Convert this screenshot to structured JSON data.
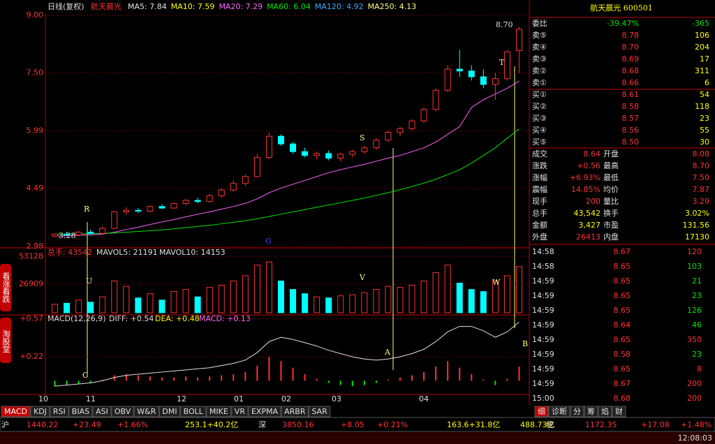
{
  "header": {
    "mode": "日线(复权)",
    "stock": "航天晨光",
    "ma": [
      {
        "text": "MA5: 7.84",
        "color": "#e0e0e0"
      },
      {
        "text": "MA10: 7.59",
        "color": "#ffff00"
      },
      {
        "text": "MA20: 7.29",
        "color": "#ff66ff"
      },
      {
        "text": "MA60: 6.04",
        "color": "#00e600"
      },
      {
        "text": "MA120: 4.92",
        "color": "#44aaff"
      },
      {
        "text": "MA250: 4.13",
        "color": "#ffff80"
      }
    ]
  },
  "price_chart": {
    "type": "candlestick",
    "ylim": [
      2.98,
      9.0
    ],
    "yticks": [
      {
        "value": 9.0,
        "label": "9.00"
      },
      {
        "value": 7.5,
        "label": "7.50"
      },
      5.99,
      4.49,
      2.98
    ],
    "ohlc": [
      [
        3.25,
        3.32,
        3.22,
        3.3
      ],
      [
        3.3,
        3.36,
        3.26,
        3.28
      ],
      [
        3.28,
        3.38,
        3.25,
        3.35
      ],
      [
        3.35,
        3.42,
        3.3,
        3.32
      ],
      [
        3.32,
        3.5,
        3.3,
        3.45
      ],
      [
        3.45,
        3.9,
        3.44,
        3.88
      ],
      [
        3.88,
        4.0,
        3.8,
        3.92
      ],
      [
        3.92,
        3.98,
        3.85,
        3.9
      ],
      [
        3.9,
        4.05,
        3.88,
        4.02
      ],
      [
        4.02,
        4.08,
        3.95,
        3.98
      ],
      [
        3.98,
        4.12,
        3.96,
        4.1
      ],
      [
        4.1,
        4.22,
        4.05,
        4.18
      ],
      [
        4.18,
        4.25,
        4.1,
        4.15
      ],
      [
        4.15,
        4.35,
        4.12,
        4.3
      ],
      [
        4.3,
        4.5,
        4.25,
        4.45
      ],
      [
        4.45,
        4.7,
        4.4,
        4.62
      ],
      [
        4.62,
        4.85,
        4.55,
        4.8
      ],
      [
        4.8,
        5.4,
        4.78,
        5.3
      ],
      [
        5.3,
        5.95,
        5.25,
        5.85
      ],
      [
        5.85,
        5.9,
        5.6,
        5.65
      ],
      [
        5.65,
        5.7,
        5.4,
        5.45
      ],
      [
        5.45,
        5.55,
        5.3,
        5.35
      ],
      [
        5.35,
        5.45,
        5.25,
        5.4
      ],
      [
        5.4,
        5.48,
        5.22,
        5.28
      ],
      [
        5.28,
        5.42,
        5.2,
        5.38
      ],
      [
        5.38,
        5.5,
        5.3,
        5.45
      ],
      [
        5.45,
        5.6,
        5.4,
        5.55
      ],
      [
        5.55,
        5.8,
        5.5,
        5.75
      ],
      [
        5.75,
        6.0,
        5.7,
        5.95
      ],
      [
        5.95,
        6.1,
        5.85,
        6.05
      ],
      [
        6.05,
        6.3,
        6.0,
        6.25
      ],
      [
        6.25,
        6.6,
        6.2,
        6.55
      ],
      [
        6.55,
        7.1,
        6.5,
        7.05
      ],
      [
        7.05,
        7.7,
        7.0,
        7.6
      ],
      [
        7.6,
        8.1,
        7.4,
        7.55
      ],
      [
        7.55,
        7.7,
        7.3,
        7.4
      ],
      [
        7.4,
        7.6,
        7.1,
        7.2
      ],
      [
        7.2,
        7.5,
        6.8,
        7.35
      ],
      [
        7.35,
        8.1,
        7.3,
        8.05
      ],
      [
        8.08,
        8.7,
        7.5,
        8.64
      ]
    ],
    "lines": [
      {
        "color": "#ff66ff",
        "values": [
          3.25,
          3.26,
          3.27,
          3.28,
          3.3,
          3.35,
          3.42,
          3.48,
          3.55,
          3.62,
          3.68,
          3.75,
          3.82,
          3.88,
          3.95,
          4.02,
          4.1,
          4.22,
          4.38,
          4.5,
          4.6,
          4.7,
          4.8,
          4.9,
          4.98,
          5.05,
          5.12,
          5.2,
          5.28,
          5.35,
          5.45,
          5.55,
          5.7,
          5.9,
          6.1,
          6.6,
          6.8,
          6.95,
          7.1,
          7.29
        ]
      },
      {
        "color": "#00e600",
        "values": [
          3.3,
          3.3,
          3.31,
          3.31,
          3.32,
          3.33,
          3.35,
          3.37,
          3.39,
          3.41,
          3.44,
          3.47,
          3.5,
          3.53,
          3.57,
          3.61,
          3.65,
          3.7,
          3.76,
          3.82,
          3.88,
          3.94,
          4.0,
          4.06,
          4.12,
          4.18,
          4.24,
          4.31,
          4.38,
          4.46,
          4.54,
          4.63,
          4.73,
          4.85,
          4.98,
          5.15,
          5.35,
          5.55,
          5.8,
          6.04
        ]
      }
    ],
    "annotations": [
      "R",
      "G",
      "S",
      "T",
      "8.70",
      "3.28"
    ]
  },
  "volume_chart": {
    "type": "bar",
    "title": "总手: 43542",
    "mavol5": "MAVOL5: 21191",
    "mavol10": "MAVOL10: 14153",
    "ylim": [
      0,
      60000
    ],
    "yticks": [
      53128,
      26909
    ],
    "values": [
      8000,
      9000,
      12000,
      10000,
      15000,
      30000,
      25000,
      14000,
      18000,
      12000,
      20000,
      22000,
      15000,
      24000,
      26000,
      30000,
      35000,
      45000,
      48000,
      30000,
      22000,
      18000,
      15000,
      14000,
      16000,
      17000,
      19000,
      22000,
      25000,
      24000,
      26000,
      30000,
      38000,
      45000,
      28000,
      22000,
      20000,
      30000,
      35000,
      43542
    ],
    "annotations": [
      "U",
      "V",
      "W"
    ]
  },
  "macd_chart": {
    "type": "bar",
    "title": "MACD(12,26,9)",
    "diff": "DIFF: +0.54",
    "dea": "DEA: +0.48",
    "macd": "MACD: +0.13",
    "ylim": [
      -0.126,
      0.6
    ],
    "yticks": [
      {
        "value": 0.57,
        "label": "+0.57"
      },
      {
        "value": 0.22,
        "label": "+0.22"
      }
    ],
    "values": [
      -0.05,
      -0.04,
      -0.03,
      -0.02,
      0.01,
      0.05,
      0.06,
      0.05,
      0.04,
      0.03,
      0.03,
      0.04,
      0.03,
      0.04,
      0.05,
      0.06,
      0.08,
      0.14,
      0.22,
      0.18,
      0.12,
      0.06,
      0.02,
      -0.02,
      -0.04,
      -0.05,
      -0.04,
      -0.02,
      0.01,
      0.03,
      0.05,
      0.08,
      0.13,
      0.18,
      0.12,
      0.06,
      0.01,
      -0.04,
      0.02,
      0.13
    ],
    "diff_values": [
      -0.05,
      -0.04,
      -0.03,
      -0.02,
      0,
      0.03,
      0.05,
      0.06,
      0.07,
      0.08,
      0.09,
      0.1,
      0.11,
      0.12,
      0.14,
      0.16,
      0.19,
      0.26,
      0.36,
      0.4,
      0.38,
      0.35,
      0.32,
      0.28,
      0.25,
      0.22,
      0.2,
      0.19,
      0.2,
      0.22,
      0.25,
      0.29,
      0.36,
      0.45,
      0.5,
      0.5,
      0.46,
      0.4,
      0.45,
      0.54
    ],
    "annotations": [
      "C",
      "A",
      "B"
    ]
  },
  "x_labels": [
    "10",
    "11",
    "12",
    "01",
    "02",
    "03",
    "04"
  ],
  "tabs": [
    "MACD",
    "KDJ",
    "RSI",
    "BIAS",
    "ASI",
    "OBV",
    "W&R",
    "DMI",
    "BOLL",
    "MIKE",
    "VR",
    "EXPMA",
    "ARBR",
    "SAR"
  ],
  "side_tabs": [
    "看涨看跌",
    "淘股堂"
  ],
  "quote": {
    "title": "航天晨光 600501",
    "weibi": [
      "委比",
      "-39.47%",
      "-365"
    ],
    "asks": [
      [
        "卖⑤",
        "8.78",
        "106"
      ],
      [
        "卖④",
        "8.70",
        "204"
      ],
      [
        "卖③",
        "8.69",
        "17"
      ],
      [
        "卖②",
        "8.68",
        "311"
      ],
      [
        "卖①",
        "8.66",
        "6"
      ]
    ],
    "bids": [
      [
        "买①",
        "8.61",
        "54"
      ],
      [
        "买②",
        "8.58",
        "118"
      ],
      [
        "买③",
        "8.57",
        "23"
      ],
      [
        "买④",
        "8.56",
        "55"
      ],
      [
        "买⑤",
        "8.50",
        "30"
      ]
    ],
    "stats": [
      [
        "成交",
        "8.64",
        "开盘",
        "8.08"
      ],
      [
        "涨跌",
        "+0.56",
        "最高",
        "8.70"
      ],
      [
        "涨幅",
        "+6.93%",
        "最低",
        "7.50"
      ],
      [
        "震幅",
        "14.85%",
        "均价",
        "7.87"
      ],
      [
        "现手",
        "200",
        "量比",
        "3.29"
      ],
      [
        "总手",
        "43,542",
        "换手",
        "3.02%"
      ],
      [
        "金额",
        "3,427",
        "市盈",
        "131.56"
      ],
      [
        "外盘",
        "26413",
        "内盘",
        "17130"
      ]
    ],
    "ticks": [
      [
        "14:58",
        "8.67",
        "120",
        "#ff3232"
      ],
      [
        "14:58",
        "8.65",
        "103",
        "#00e600"
      ],
      [
        "14:59",
        "8.65",
        "21",
        "#00e600"
      ],
      [
        "14:59",
        "8.65",
        "23",
        "#00e600"
      ],
      [
        "14:59",
        "8.65",
        "126",
        "#00e600"
      ],
      [
        "14:59",
        "8.64",
        "46",
        "#00e600"
      ],
      [
        "14:59",
        "8.65",
        "350",
        "#ff3232"
      ],
      [
        "14:59",
        "8.58",
        "23",
        "#00e600"
      ],
      [
        "14:59",
        "8.65",
        "8",
        "#ff3232"
      ],
      [
        "14:59",
        "8.67",
        "200",
        "#ff3232"
      ],
      [
        "15:00",
        "8.68",
        "200",
        "#ff3232"
      ]
    ],
    "tabs": [
      "细",
      "诊断",
      "分",
      "筹",
      "焰",
      "财"
    ]
  },
  "index_bar": [
    [
      "沪",
      "#e0e0e0"
    ],
    [
      "1440.22",
      "#ff3232"
    ],
    [
      "+23.49",
      "#ff3232"
    ],
    [
      "+1.66%",
      "#ff3232"
    ],
    [
      "253.1+40.2亿",
      "#ffff00"
    ],
    [
      "深",
      "#e0e0e0"
    ],
    [
      "3850.16",
      "#ff3232"
    ],
    [
      "+8.05",
      "#ff3232"
    ],
    [
      "+0.21%",
      "#ff3232"
    ],
    [
      "163.6+31.8亿",
      "#ffff00"
    ],
    [
      "488.73亿",
      "#ffff00"
    ],
    [
      "统",
      "#e0e0e0"
    ],
    [
      "1172.35",
      "#ff3232"
    ],
    [
      "+17.08",
      "#ff3232"
    ],
    [
      "+1.48%",
      "#ff3232"
    ]
  ],
  "clock": "12:08:03"
}
